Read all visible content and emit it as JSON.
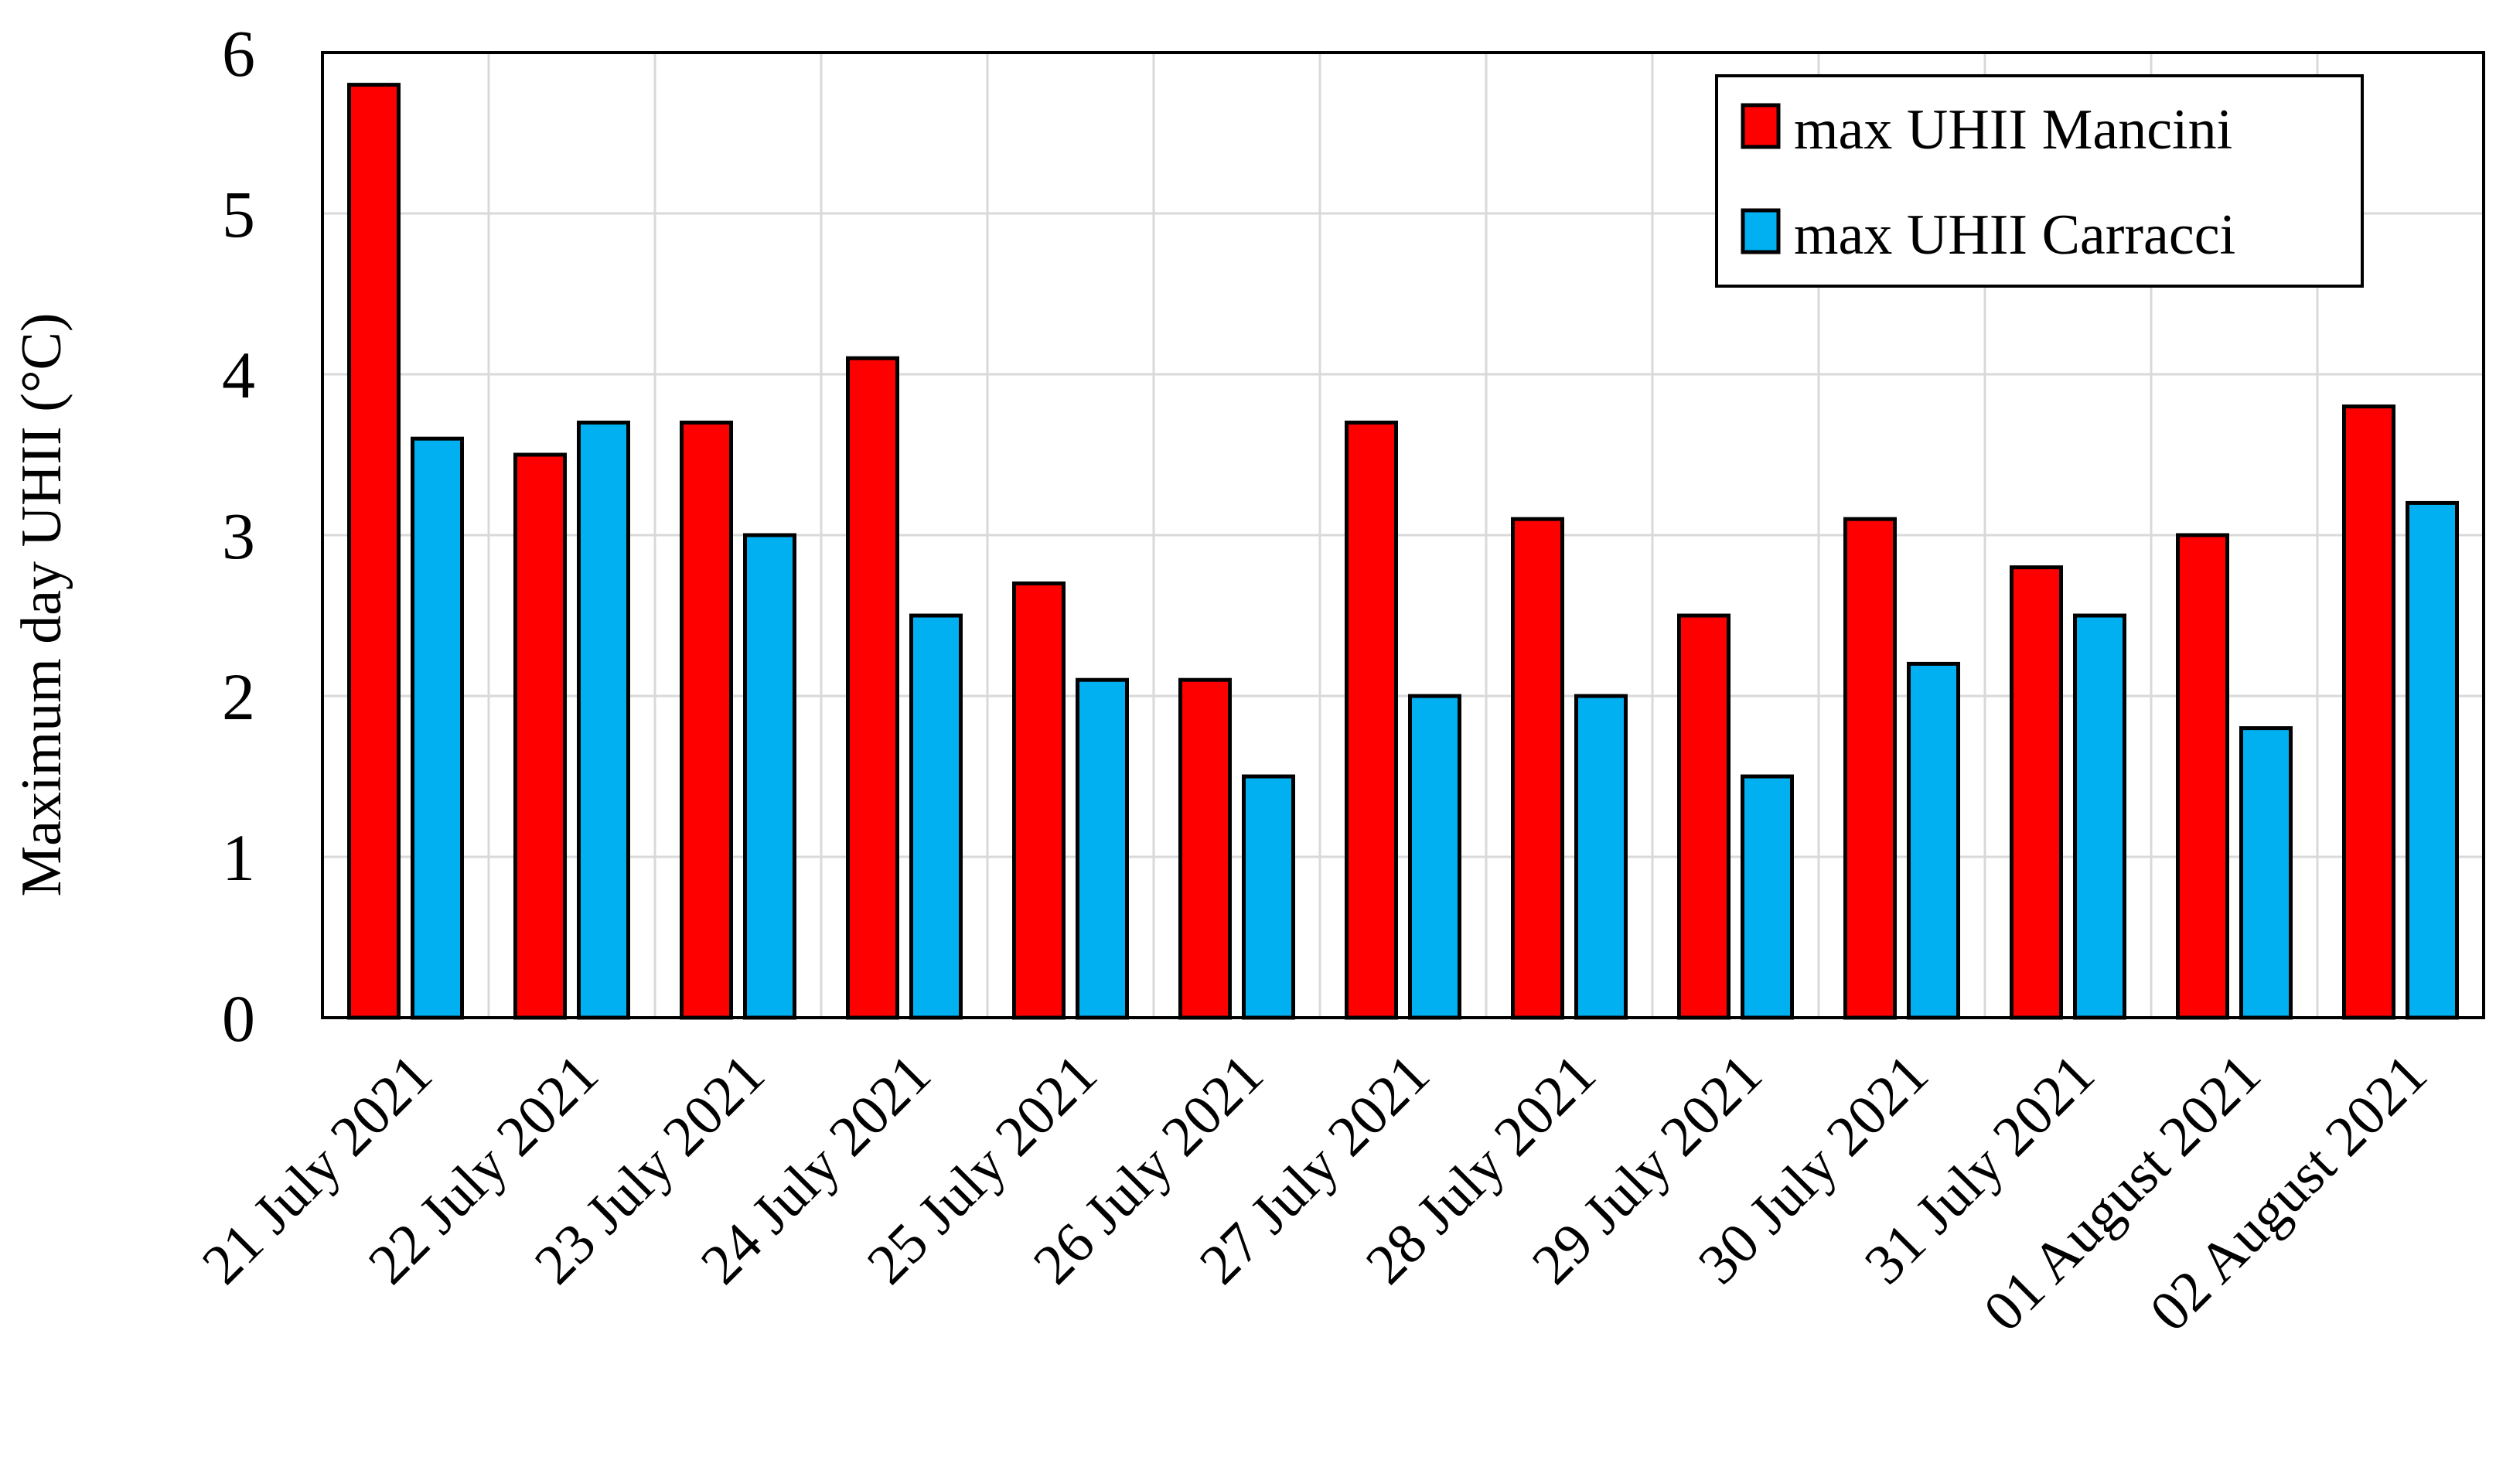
{
  "chart_data": {
    "type": "bar",
    "title": "",
    "xlabel": "",
    "ylabel": "Maximum day UHII (°C)",
    "ylim": [
      0,
      6
    ],
    "yticks": [
      0,
      1,
      2,
      3,
      4,
      5,
      6
    ],
    "grid": true,
    "legend_position": "top-right",
    "categories": [
      "21 July 2021",
      "22 July 2021",
      "23 July 2021",
      "24 July 2021",
      "25 July 2021",
      "26 July 2021",
      "27 July 2021",
      "28 July 2021",
      "29 July 2021",
      "30 July 2021",
      "31 July 2021",
      "01 August 2021",
      "02 August 2021"
    ],
    "series": [
      {
        "name": "max UHII Mancini",
        "color": "#ff0000",
        "values": [
          5.8,
          3.5,
          3.7,
          4.1,
          2.7,
          2.1,
          3.7,
          3.1,
          2.5,
          3.1,
          2.8,
          3.0,
          3.8
        ]
      },
      {
        "name": "max UHII Carracci",
        "color": "#00b0f0",
        "values": [
          3.6,
          3.7,
          3.0,
          2.5,
          2.1,
          1.5,
          2.0,
          2.0,
          1.5,
          2.2,
          2.5,
          1.8,
          3.2
        ]
      }
    ]
  }
}
